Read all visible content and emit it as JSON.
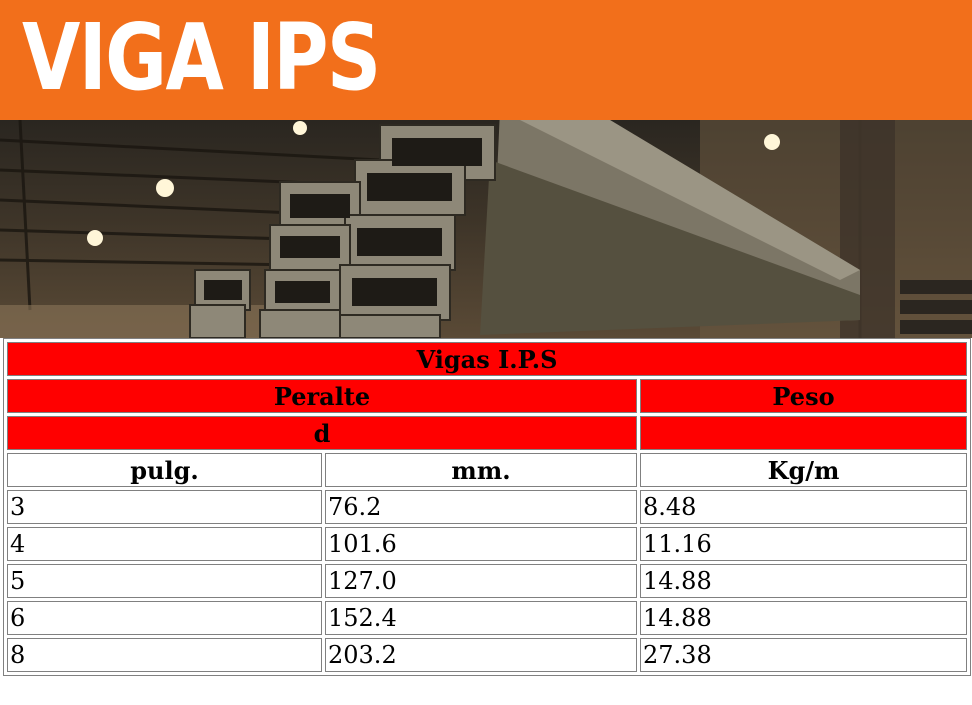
{
  "banner": {
    "title": "VIGA IPS"
  },
  "photo": {
    "alt": "viga-ips-photo"
  },
  "table": {
    "title": "Vigas I.P.S",
    "group_peralte": "Peralte",
    "group_peso": "Peso",
    "symbol_d": "d",
    "col_pulg": "pulg.",
    "col_mm": "mm.",
    "col_kgm": "Kg/m",
    "rows": [
      {
        "pulg": "3",
        "mm": "76.2",
        "kgm": "8.48"
      },
      {
        "pulg": "4",
        "mm": "101.6",
        "kgm": "11.16"
      },
      {
        "pulg": "5",
        "mm": "127.0",
        "kgm": "14.88"
      },
      {
        "pulg": "6",
        "mm": "152.4",
        "kgm": "14.88"
      },
      {
        "pulg": "8",
        "mm": "203.2",
        "kgm": "27.38"
      }
    ]
  },
  "colors": {
    "banner": "#f26f1b",
    "header_red": "#ff0000",
    "border": "#808080"
  }
}
